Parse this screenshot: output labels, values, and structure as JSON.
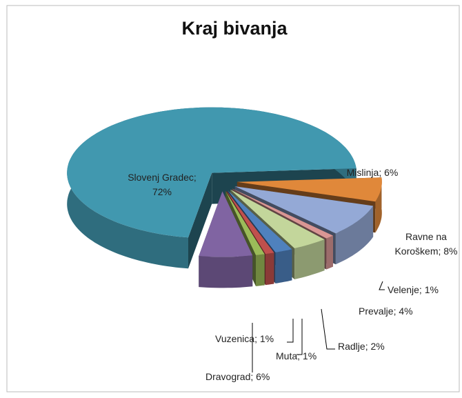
{
  "chart_data": {
    "type": "pie3d",
    "title": "Kraj bivanja",
    "values": [
      6,
      8,
      1,
      4,
      2,
      1,
      1,
      6,
      72
    ],
    "value_labels": [
      "Mislinja; 6%",
      "Ravne na Koroškem; 8%",
      "Velenje; 1%",
      "Prevalje; 4%",
      "Radlje; 2%",
      "Muta; 1%",
      "Vuzenica; 1%",
      "Dravograd; 6%",
      "Slovenj Gradec; 72%"
    ],
    "colors": [
      "#e0883a",
      "#94a9d6",
      "#d99694",
      "#c3d69b",
      "#4f81bd",
      "#c0504d",
      "#9bbb59",
      "#8064a2",
      "#4198af"
    ]
  }
}
